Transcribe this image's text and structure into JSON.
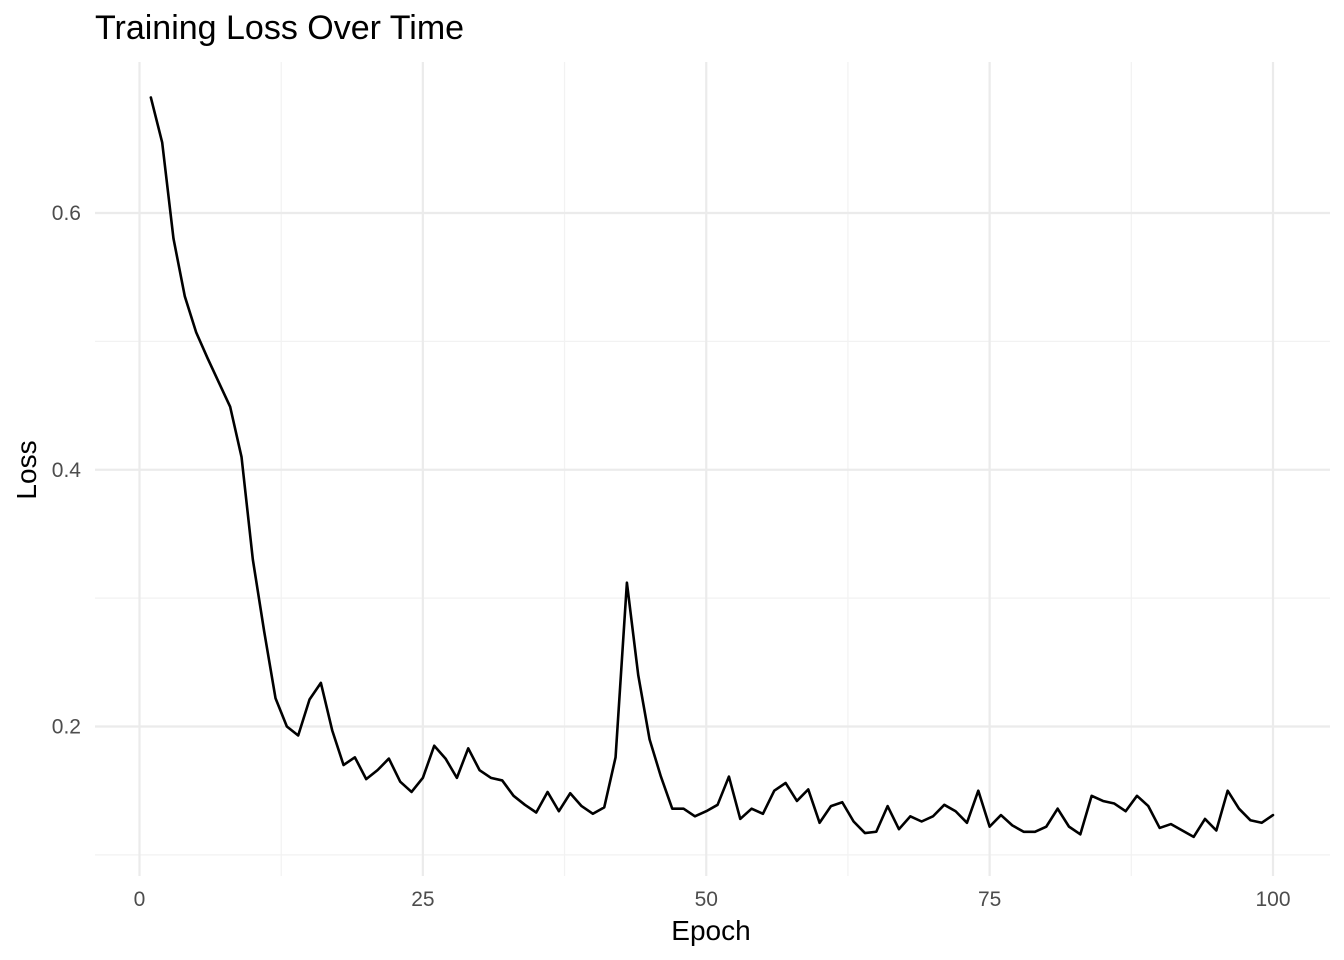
{
  "chart_data": {
    "type": "line",
    "title": "Training Loss Over Time",
    "xlabel": "Epoch",
    "ylabel": "Loss",
    "xlim": [
      0,
      100
    ],
    "ylim": [
      0.09,
      0.7
    ],
    "x_ticks": [
      0,
      25,
      50,
      75,
      100
    ],
    "y_ticks": [
      0.2,
      0.4,
      0.6
    ],
    "x_tick_labels": [
      "0",
      "25",
      "50",
      "75",
      "100"
    ],
    "y_tick_labels": [
      "0.2",
      "0.4",
      "0.6"
    ],
    "grid": true,
    "legend": "none",
    "line_color": "#000000",
    "series": [
      {
        "x": [
          1,
          2,
          3,
          4,
          5,
          6,
          7,
          8,
          9,
          10,
          11,
          12,
          13,
          14,
          15,
          16,
          17,
          18,
          19,
          20,
          21,
          22,
          23,
          24,
          25,
          26,
          27,
          28,
          29,
          30,
          31,
          32,
          33,
          34,
          35,
          36,
          37,
          38,
          39,
          40,
          41,
          42,
          43,
          44,
          45,
          46,
          47,
          48,
          49,
          50,
          51,
          52,
          53,
          54,
          55,
          56,
          57,
          58,
          59,
          60,
          61,
          62,
          63,
          64,
          65,
          66,
          67,
          68,
          69,
          70,
          71,
          72,
          73,
          74,
          75,
          76,
          77,
          78,
          79,
          80,
          81,
          82,
          83,
          84,
          85,
          86,
          87,
          88,
          89,
          90,
          91,
          92,
          93,
          94,
          95,
          96,
          97,
          98,
          99,
          100
        ],
        "values": [
          0.69,
          0.655,
          0.58,
          0.535,
          0.507,
          0.487,
          0.468,
          0.449,
          0.41,
          0.33,
          0.274,
          0.222,
          0.2,
          0.193,
          0.221,
          0.234,
          0.197,
          0.17,
          0.176,
          0.159,
          0.166,
          0.175,
          0.157,
          0.149,
          0.16,
          0.185,
          0.175,
          0.16,
          0.183,
          0.166,
          0.16,
          0.158,
          0.146,
          0.139,
          0.133,
          0.149,
          0.134,
          0.148,
          0.138,
          0.132,
          0.137,
          0.176,
          0.312,
          0.24,
          0.19,
          0.161,
          0.136,
          0.136,
          0.13,
          0.134,
          0.139,
          0.161,
          0.128,
          0.136,
          0.132,
          0.15,
          0.156,
          0.142,
          0.151,
          0.125,
          0.138,
          0.141,
          0.126,
          0.117,
          0.118,
          0.138,
          0.12,
          0.13,
          0.126,
          0.13,
          0.139,
          0.134,
          0.125,
          0.15,
          0.122,
          0.131,
          0.123,
          0.118,
          0.118,
          0.122,
          0.136,
          0.122,
          0.116,
          0.146,
          0.142,
          0.14,
          0.134,
          0.146,
          0.138,
          0.121,
          0.124,
          0.119,
          0.114,
          0.128,
          0.119,
          0.15,
          0.136,
          0.127,
          0.125,
          0.131
        ]
      }
    ]
  }
}
